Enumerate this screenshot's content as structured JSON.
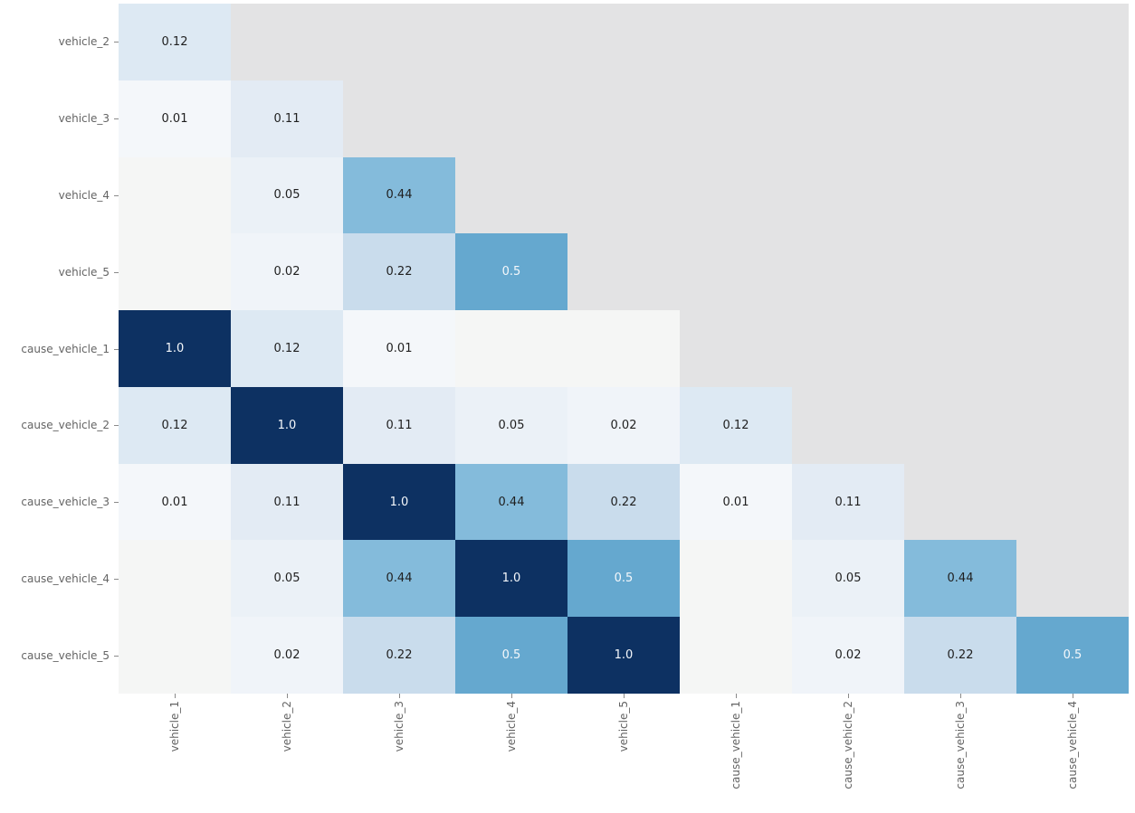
{
  "chart_data": {
    "type": "heatmap",
    "title": "",
    "xlabel": "",
    "ylabel": "",
    "x_labels": [
      "vehicle_1",
      "vehicle_2",
      "vehicle_3",
      "vehicle_4",
      "vehicle_5",
      "cause_vehicle_1",
      "cause_vehicle_2",
      "cause_vehicle_3",
      "cause_vehicle_4"
    ],
    "y_labels": [
      "vehicle_2",
      "vehicle_3",
      "vehicle_4",
      "vehicle_5",
      "cause_vehicle_1",
      "cause_vehicle_2",
      "cause_vehicle_3",
      "cause_vehicle_4",
      "cause_vehicle_5"
    ],
    "rows": [
      [
        "0.12"
      ],
      [
        "0.01",
        "0.11"
      ],
      [
        null,
        "0.05",
        "0.44"
      ],
      [
        null,
        "0.02",
        "0.22",
        "0.5"
      ],
      [
        "1.0",
        "0.12",
        "0.01",
        null,
        null
      ],
      [
        "0.12",
        "1.0",
        "0.11",
        "0.05",
        "0.02",
        "0.12"
      ],
      [
        "0.01",
        "0.11",
        "1.0",
        "0.44",
        "0.22",
        "0.01",
        "0.11"
      ],
      [
        null,
        "0.05",
        "0.44",
        "1.0",
        "0.5",
        null,
        "0.05",
        "0.44"
      ],
      [
        null,
        "0.02",
        "0.22",
        "0.5",
        "1.0",
        null,
        "0.02",
        "0.22",
        "0.5"
      ]
    ],
    "masked_region": "upper-triangle",
    "colormap": "Blues",
    "value_colors": {
      "0.01": "#f4f7fa",
      "0.02": "#f0f4f9",
      "0.05": "#ebf1f7",
      "0.11": "#e3ebf4",
      "0.12": "#dde9f3",
      "0.22": "#c9dcec",
      "0.44": "#84bbdb",
      "0.5": "#65a8cf",
      "1.0": "#0d3162"
    },
    "empty_cell_color": "#f5f6f5",
    "masked_cell_color": "#e3e3e4",
    "white_text_values": [
      "0.5",
      "1.0"
    ],
    "annotation_text_dark": "#1f1f1f",
    "annotation_text_light": "#f5f8fb",
    "tick_label_color": "#646464",
    "tick_mark_color": "#8a8a8a",
    "legend": "none"
  }
}
